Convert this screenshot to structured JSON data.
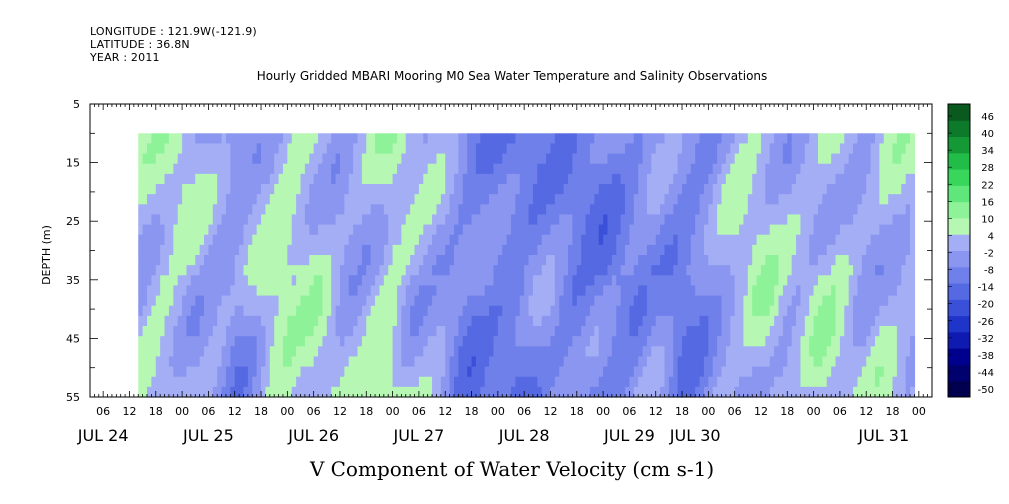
{
  "header": {
    "longitude": "LONGITUDE : 121.9W(-121.9)",
    "latitude": "LATITUDE : 36.8N",
    "year": "YEAR : 2011"
  },
  "colors": {
    "deep_negative": "#00006e",
    "mid_negative": "#6f6fe8",
    "light_negative": "#a8a8f5",
    "light_positive": "#9af5a0",
    "mid_positive": "#39d65c",
    "deep_positive": "#0d5a22"
  },
  "chart_data": {
    "type": "heatmap",
    "title": "Hourly Gridded MBARI Mooring M0 Sea Water Temperature and Salinity Observations",
    "xlabel": "V Component of Water Velocity (cm s-1)",
    "ylabel": "DEPTH (m)",
    "y_range": [
      5,
      55
    ],
    "y_inverted": true,
    "y_ticks": [
      "5",
      "15",
      "25",
      "35",
      "45",
      "55"
    ],
    "x_range": [
      "2011-07-23T03:00",
      "2011-07-31T03:00"
    ],
    "x_hour_labels": [
      "06",
      "12",
      "18",
      "00",
      "06",
      "12",
      "18",
      "00",
      "06",
      "12",
      "18",
      "00",
      "06",
      "12",
      "18",
      "00",
      "06",
      "12",
      "18",
      "00",
      "06",
      "12",
      "18",
      "00",
      "06",
      "12",
      "18",
      "00",
      "06",
      "12",
      "18",
      "00"
    ],
    "x_day_labels": [
      "JUL 24",
      "JUL 25",
      "JUL 26",
      "JUL 27",
      "JUL 28",
      "JUL 29",
      "JUL 30",
      "JUL 31"
    ],
    "colorbar_labels": [
      "46",
      "40",
      "34",
      "28",
      "22",
      "16",
      "10",
      "4",
      "-2",
      "-8",
      "-14",
      "-20",
      "-26",
      "-32",
      "-38",
      "-44",
      "-50"
    ],
    "value_range": [
      -50,
      50
    ],
    "data_start": "2011-07-23T14:00",
    "data_end": "2011-07-30T23:00",
    "data_top_depth": 10,
    "approx_profile": {
      "days": [
        "JUL 23 18",
        "JUL 24 00",
        "JUL 24 06",
        "JUL 24 12",
        "JUL 24 18",
        "JUL 25 00",
        "JUL 25 06",
        "JUL 25 12",
        "JUL 25 18",
        "JUL 26 00",
        "JUL 26 06",
        "JUL 26 12",
        "JUL 26 18",
        "JUL 27 00",
        "JUL 27 06",
        "JUL 27 12",
        "JUL 27 18",
        "JUL 28 00",
        "JUL 28 06",
        "JUL 28 12",
        "JUL 28 18",
        "JUL 29 00",
        "JUL 29 06",
        "JUL 29 12",
        "JUL 29 18",
        "JUL 30 00",
        "JUL 30 06",
        "JUL 30 12",
        "JUL 30 18"
      ],
      "depth_avg_velocity": [
        8,
        10,
        4,
        0,
        6,
        12,
        10,
        4,
        6,
        12,
        6,
        2,
        -4,
        -6,
        -4,
        -2,
        -4,
        -6,
        -2,
        0,
        -4,
        -2,
        8,
        10,
        6,
        8,
        10,
        4,
        8
      ]
    }
  }
}
